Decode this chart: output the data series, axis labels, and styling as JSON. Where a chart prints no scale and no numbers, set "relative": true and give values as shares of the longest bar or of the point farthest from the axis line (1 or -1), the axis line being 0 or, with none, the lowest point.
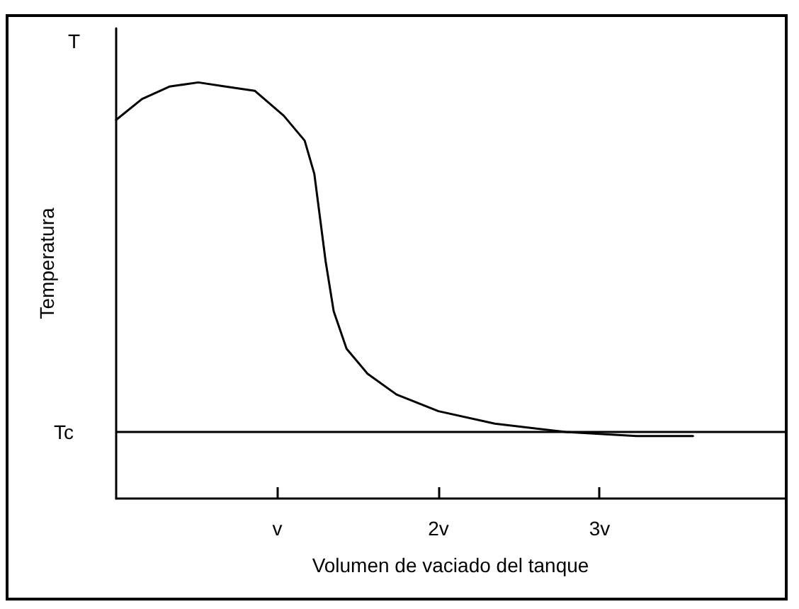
{
  "chart_data": {
    "type": "line",
    "xlabel": "Volumen de vaciado del tanque",
    "ylabel": "Temperatura",
    "relative": true,
    "xlim": [
      0,
      4.15
    ],
    "xticks": [
      {
        "value": 1,
        "label": "v"
      },
      {
        "value": 2,
        "label": "2v"
      },
      {
        "value": 3,
        "label": "3v"
      }
    ],
    "series": [
      {
        "color": "#000000",
        "x": [
          0,
          0.16,
          0.33,
          0.51,
          0.68,
          0.86,
          1.04,
          1.17,
          1.23,
          1.26,
          1.3,
          1.35,
          1.43,
          1.56,
          1.74,
          2.0,
          2.35,
          2.79,
          3.23,
          3.58
        ],
        "values": [
          0.91,
          0.96,
          0.99,
          1,
          0.99,
          0.98,
          0.92,
          0.86,
          0.78,
          0.69,
          0.57,
          0.45,
          0.36,
          0.3,
          0.25,
          0.21,
          0.18,
          0.16,
          0.15,
          0.15
        ]
      }
    ],
    "ref_lines": [
      {
        "axis": "y",
        "value": 0.16,
        "label": "Tc",
        "color": "#000000"
      }
    ],
    "annotations": [
      "T"
    ],
    "grid": false,
    "marker": "none",
    "line_style": "solid"
  }
}
